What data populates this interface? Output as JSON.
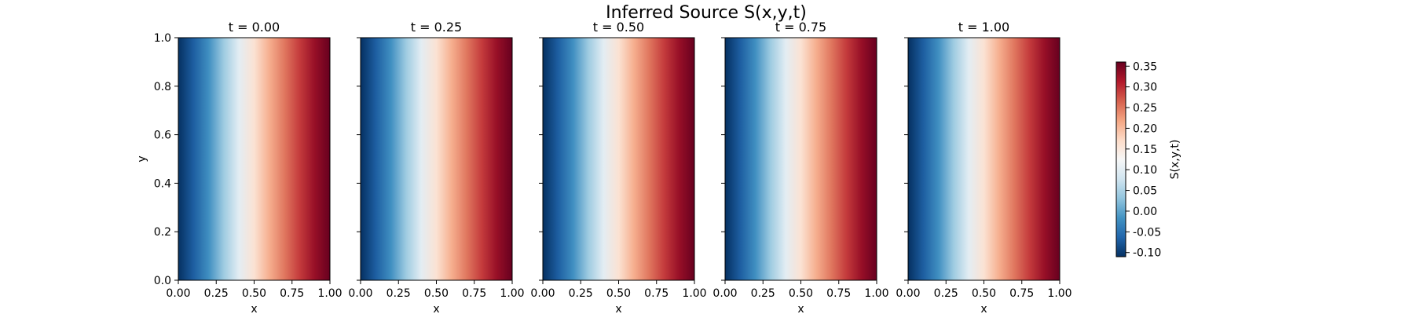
{
  "chart_data": {
    "type": "heatmap",
    "title": "Inferred Source S(x,y,t)",
    "panels": [
      {
        "title": "t = 0.00",
        "t": 0.0
      },
      {
        "title": "t = 0.25",
        "t": 0.25
      },
      {
        "title": "t = 0.50",
        "t": 0.5
      },
      {
        "title": "t = 0.75",
        "t": 0.75
      },
      {
        "title": "t = 1.00",
        "t": 1.0
      }
    ],
    "xlabel": "x",
    "ylabel": "y",
    "xlim": [
      0,
      1
    ],
    "ylim": [
      0,
      1
    ],
    "xticks": [
      "0.00",
      "0.25",
      "0.50",
      "0.75",
      "1.00"
    ],
    "yticks": [
      "0.0",
      "0.2",
      "0.4",
      "0.6",
      "0.8",
      "1.0"
    ],
    "field": {
      "varies_along": "x",
      "x": [
        0.0,
        0.1,
        0.2,
        0.3,
        0.4,
        0.5,
        0.6,
        0.7,
        0.8,
        0.9,
        1.0
      ],
      "values": [
        -0.11,
        -0.07,
        -0.02,
        0.04,
        0.1,
        0.16,
        0.21,
        0.25,
        0.29,
        0.33,
        0.36
      ],
      "constant_in": [
        "y",
        "t"
      ]
    },
    "colormap": "RdBu_r",
    "colorbar": {
      "label": "S(x,y,t)",
      "vmin": -0.11,
      "vmax": 0.36,
      "ticks": [
        "-0.10",
        "-0.05",
        "0.00",
        "0.05",
        "0.10",
        "0.15",
        "0.20",
        "0.25",
        "0.30",
        "0.35"
      ]
    },
    "grid": false
  }
}
